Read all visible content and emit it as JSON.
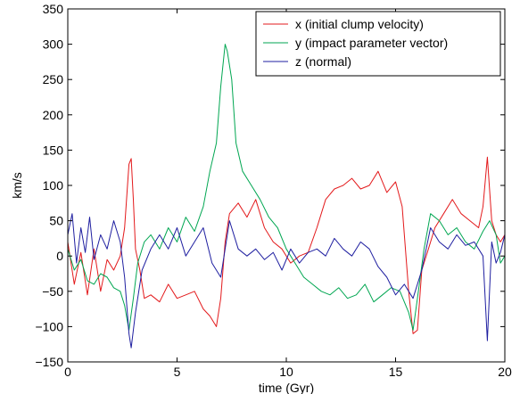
{
  "chart_data": {
    "type": "line",
    "title": "",
    "xlabel": "time (Gyr)",
    "ylabel": "km/s",
    "xlim": [
      0,
      20
    ],
    "ylim": [
      -150,
      350
    ],
    "xticks": [
      0,
      5,
      10,
      15,
      20
    ],
    "yticks": [
      -150,
      -100,
      -50,
      0,
      50,
      100,
      150,
      200,
      250,
      300,
      350
    ],
    "xtick_labels": [
      "0",
      "5",
      "10",
      "15",
      "20"
    ],
    "ytick_labels": [
      "−150",
      "−100",
      "−50",
      "0",
      "50",
      "100",
      "150",
      "200",
      "250",
      "300",
      "350"
    ],
    "grid": false,
    "legend_position": "top-right",
    "series": [
      {
        "name": "x (initial clump velocity)",
        "color": "#e31a1c",
        "x": [
          0,
          0.3,
          0.6,
          0.9,
          1.2,
          1.5,
          1.8,
          2.1,
          2.4,
          2.6,
          2.8,
          2.9,
          3.0,
          3.1,
          3.3,
          3.5,
          3.8,
          4.2,
          4.6,
          5.0,
          5.4,
          5.8,
          6.2,
          6.5,
          6.8,
          7.0,
          7.2,
          7.4,
          7.8,
          8.2,
          8.6,
          9.0,
          9.4,
          9.8,
          10.2,
          10.6,
          11.0,
          11.4,
          11.8,
          12.2,
          12.6,
          13.0,
          13.4,
          13.8,
          14.2,
          14.6,
          15.0,
          15.3,
          15.6,
          15.8,
          16.0,
          16.2,
          16.5,
          16.8,
          17.2,
          17.6,
          18.0,
          18.4,
          18.8,
          19.0,
          19.2,
          19.4,
          19.6,
          19.8,
          20.0
        ],
        "y": [
          20,
          -40,
          5,
          -55,
          10,
          -50,
          -5,
          -20,
          0,
          40,
          130,
          138,
          80,
          10,
          -20,
          -60,
          -55,
          -65,
          -40,
          -60,
          -55,
          -50,
          -75,
          -85,
          -100,
          -60,
          20,
          60,
          75,
          55,
          80,
          40,
          20,
          10,
          -10,
          0,
          5,
          40,
          80,
          95,
          100,
          110,
          95,
          100,
          120,
          90,
          105,
          70,
          -50,
          -110,
          -105,
          -20,
          10,
          40,
          60,
          80,
          60,
          50,
          40,
          70,
          140,
          50,
          30,
          20,
          30
        ]
      },
      {
        "name": "y (impact parameter vector)",
        "color": "#00a651",
        "x": [
          0,
          0.3,
          0.6,
          0.9,
          1.2,
          1.5,
          1.8,
          2.1,
          2.4,
          2.6,
          2.8,
          3.0,
          3.2,
          3.5,
          3.8,
          4.2,
          4.6,
          5.0,
          5.4,
          5.8,
          6.2,
          6.5,
          6.8,
          7.0,
          7.2,
          7.3,
          7.5,
          7.7,
          8.0,
          8.4,
          8.8,
          9.2,
          9.6,
          10.0,
          10.4,
          10.8,
          11.2,
          11.6,
          12.0,
          12.4,
          12.8,
          13.2,
          13.6,
          14.0,
          14.4,
          14.8,
          15.2,
          15.6,
          15.8,
          16.0,
          16.3,
          16.6,
          17.0,
          17.4,
          17.8,
          18.2,
          18.6,
          19.0,
          19.3,
          19.6,
          19.8,
          20.0
        ],
        "y": [
          10,
          -20,
          -5,
          -35,
          -40,
          -25,
          -30,
          -45,
          -50,
          -70,
          -105,
          -60,
          -10,
          20,
          30,
          10,
          40,
          20,
          55,
          35,
          70,
          120,
          160,
          240,
          300,
          290,
          250,
          160,
          120,
          100,
          80,
          55,
          40,
          10,
          -10,
          -30,
          -40,
          -50,
          -55,
          -45,
          -60,
          -55,
          -40,
          -65,
          -55,
          -45,
          -50,
          -80,
          -105,
          -60,
          10,
          60,
          50,
          30,
          40,
          20,
          10,
          35,
          50,
          30,
          -10,
          0
        ]
      },
      {
        "name": "z (normal)",
        "color": "#1f1fa0",
        "x": [
          0,
          0.2,
          0.4,
          0.6,
          0.8,
          1.0,
          1.2,
          1.5,
          1.8,
          2.1,
          2.4,
          2.6,
          2.8,
          2.9,
          3.1,
          3.4,
          3.8,
          4.2,
          4.6,
          5.0,
          5.4,
          5.8,
          6.2,
          6.6,
          7.0,
          7.4,
          7.8,
          8.2,
          8.6,
          9.0,
          9.4,
          9.8,
          10.2,
          10.6,
          11.0,
          11.4,
          11.8,
          12.2,
          12.6,
          13.0,
          13.4,
          13.8,
          14.2,
          14.6,
          15.0,
          15.4,
          15.8,
          16.2,
          16.6,
          17.0,
          17.4,
          17.8,
          18.2,
          18.6,
          19.0,
          19.2,
          19.4,
          19.6,
          19.8,
          20.0
        ],
        "y": [
          30,
          60,
          -10,
          40,
          5,
          55,
          -5,
          30,
          10,
          50,
          20,
          -30,
          -110,
          -130,
          -80,
          -20,
          10,
          30,
          10,
          40,
          0,
          20,
          40,
          -10,
          -30,
          50,
          10,
          0,
          10,
          -5,
          5,
          -20,
          10,
          -10,
          5,
          10,
          0,
          25,
          10,
          0,
          20,
          10,
          -15,
          -30,
          -55,
          -40,
          -60,
          -20,
          40,
          20,
          10,
          30,
          15,
          20,
          0,
          -120,
          20,
          -10,
          5,
          30
        ]
      }
    ]
  }
}
